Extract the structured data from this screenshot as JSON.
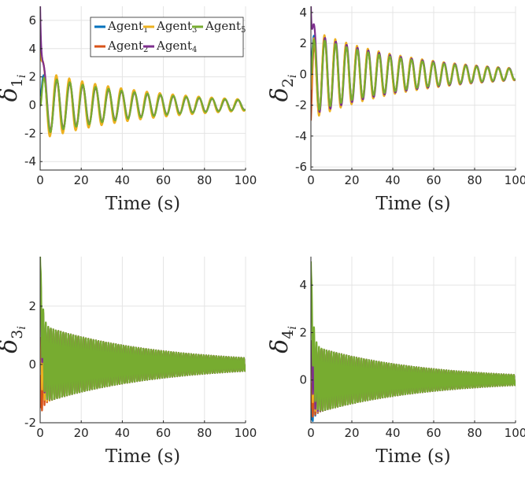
{
  "legend": {
    "entries": [
      {
        "prefix": "Agent",
        "sub": "1",
        "color": "#0072BD"
      },
      {
        "prefix": "Agent",
        "sub": "3",
        "color": "#EDB120"
      },
      {
        "prefix": "Agent",
        "sub": "5",
        "color": "#77AC30"
      },
      {
        "prefix": "Agent",
        "sub": "2",
        "color": "#D95319"
      },
      {
        "prefix": "Agent",
        "sub": "4",
        "color": "#7E2F8E"
      }
    ]
  },
  "chart_data": [
    {
      "type": "line",
      "ylabel": {
        "symbol": "δ",
        "sub": "1",
        "subsub": "i"
      },
      "xlabel": "Time (s)",
      "xlim": [
        0,
        100
      ],
      "ylim": [
        -4.6,
        7
      ],
      "xticks": [
        0,
        20,
        40,
        60,
        80,
        100
      ],
      "yticks": [
        -4,
        -2,
        0,
        2,
        4,
        6
      ],
      "grid": true,
      "legend": "top",
      "period": 6.3,
      "decay": 0.018,
      "initial_swing": 7,
      "series": [
        {
          "start": 0.8,
          "amp": 2.2,
          "phase": 0.15
        },
        {
          "start": 4.5,
          "amp": 2.45,
          "phase": 0.0
        },
        {
          "start": 0,
          "amp": 2.1,
          "phase": 0.25
        },
        {
          "start": 5,
          "amp": 2.3,
          "phase": 0.08
        },
        {
          "start": 7,
          "amp": 2.0,
          "phase": 0.3
        }
      ]
    },
    {
      "type": "line",
      "ylabel": {
        "symbol": "δ",
        "sub": "2",
        "subsub": "i"
      },
      "xlabel": "Time (s)",
      "xlim": [
        0,
        100
      ],
      "ylim": [
        -6.2,
        4.4
      ],
      "xticks": [
        0,
        20,
        40,
        60,
        80,
        100
      ],
      "yticks": [
        -6,
        -4,
        -2,
        0,
        2,
        4
      ],
      "grid": true,
      "period": 5.3,
      "decay": 0.02,
      "initial_swing": -6,
      "series": [
        {
          "start": 1,
          "amp": 2.6,
          "phase": 0.12
        },
        {
          "start": -1,
          "amp": 2.9,
          "phase": 0.0
        },
        {
          "start": 0,
          "amp": 2.5,
          "phase": 0.22
        },
        {
          "start": -3,
          "amp": 2.8,
          "phase": 0.06
        },
        {
          "start": 4.4,
          "amp": 2.7,
          "phase": 0.3
        }
      ]
    },
    {
      "type": "line",
      "ylabel": {
        "symbol": "δ",
        "sub": "3",
        "subsub": "i"
      },
      "xlabel": "Time (s)",
      "xlim": [
        0,
        100
      ],
      "ylim": [
        -2,
        3.7
      ],
      "xticks": [
        0,
        20,
        40,
        60,
        80,
        100
      ],
      "yticks": [
        -2,
        0,
        2
      ],
      "grid": true,
      "period": 1.22,
      "decay": 0.018,
      "initial_swing": 3.5,
      "series": [
        {
          "start": 0.3,
          "amp": 1.35,
          "phase": 0.0
        },
        {
          "start": 0.5,
          "amp": 1.35,
          "phase": 0.0
        },
        {
          "start": 3.7,
          "amp": 1.35,
          "phase": 0.0
        },
        {
          "start": -1.5,
          "amp": 1.35,
          "phase": 0.0
        },
        {
          "start": 3.2,
          "amp": 1.35,
          "phase": 0.0
        }
      ]
    },
    {
      "type": "line",
      "ylabel": {
        "symbol": "δ",
        "sub": "4",
        "subsub": "i"
      },
      "xlabel": "Time (s)",
      "xlim": [
        0,
        100
      ],
      "ylim": [
        -1.8,
        5.2
      ],
      "xticks": [
        0,
        20,
        40,
        60,
        80,
        100
      ],
      "yticks": [
        0,
        2,
        4
      ],
      "grid": true,
      "period": 1.22,
      "decay": 0.019,
      "initial_swing": 5,
      "series": [
        {
          "start": -1.7,
          "amp": 1.45,
          "phase": 0.0
        },
        {
          "start": 0.5,
          "amp": 1.45,
          "phase": 0.0
        },
        {
          "start": 5,
          "amp": 1.45,
          "phase": 0.0
        },
        {
          "start": -1.2,
          "amp": 1.45,
          "phase": 0.0
        },
        {
          "start": 1.5,
          "amp": 1.45,
          "phase": 0.0
        }
      ]
    }
  ]
}
